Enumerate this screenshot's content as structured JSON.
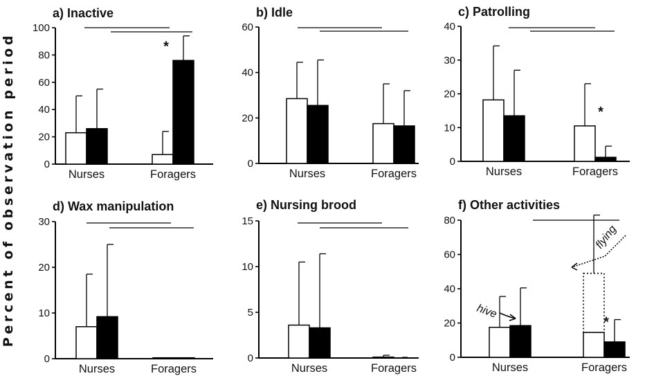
{
  "figure": {
    "ylabel": "Percent of observation period"
  },
  "chart_data": [
    {
      "type": "bar",
      "title": "a) Inactive",
      "categories": [
        "Nurses",
        "Foragers"
      ],
      "ylim": [
        0,
        100
      ],
      "yticks": [
        0,
        20,
        40,
        60,
        80,
        100
      ],
      "legend": "none",
      "grid": false,
      "series": [
        {
          "fill": "#ffffff",
          "values": [
            23,
            7
          ],
          "errors": [
            50,
            24
          ]
        },
        {
          "fill": "#000000",
          "values": [
            26,
            76
          ],
          "errors": [
            55,
            94
          ]
        }
      ],
      "asterisks": [
        {
          "category": 1,
          "series": 1,
          "text": "*"
        }
      ]
    },
    {
      "type": "bar",
      "title": "b) Idle",
      "categories": [
        "Nurses",
        "Foragers"
      ],
      "ylim": [
        0,
        60
      ],
      "yticks": [
        0,
        20,
        40,
        60
      ],
      "legend": "none",
      "grid": false,
      "series": [
        {
          "fill": "#ffffff",
          "values": [
            28.5,
            17.5
          ],
          "errors": [
            44.5,
            35
          ]
        },
        {
          "fill": "#000000",
          "values": [
            25.5,
            16.5
          ],
          "errors": [
            45.5,
            32
          ]
        }
      ],
      "asterisks": []
    },
    {
      "type": "bar",
      "title": "c) Patrolling",
      "categories": [
        "Nurses",
        "Foragers"
      ],
      "ylim": [
        0,
        40
      ],
      "yticks": [
        0,
        10,
        20,
        30,
        40
      ],
      "legend": "none",
      "grid": false,
      "series": [
        {
          "fill": "#ffffff",
          "values": [
            18.2,
            10.5
          ],
          "errors": [
            34.2,
            23
          ]
        },
        {
          "fill": "#000000",
          "values": [
            13.5,
            1.2
          ],
          "errors": [
            27,
            4.5
          ]
        }
      ],
      "asterisks": [
        {
          "category": 1,
          "series": 0,
          "text": "*"
        }
      ]
    },
    {
      "type": "bar",
      "title": "d) Wax manipulation",
      "categories": [
        "Nurses",
        "Foragers"
      ],
      "ylim": [
        0,
        30
      ],
      "yticks": [
        0,
        10,
        20,
        30
      ],
      "legend": "none",
      "grid": false,
      "series": [
        {
          "fill": "#ffffff",
          "values": [
            7,
            0.2
          ],
          "errors": [
            18.5,
            0.2
          ]
        },
        {
          "fill": "#000000",
          "values": [
            9.2,
            0.2
          ],
          "errors": [
            25,
            0.2
          ]
        }
      ],
      "asterisks": []
    },
    {
      "type": "bar",
      "title": "e) Nursing brood",
      "categories": [
        "Nurses",
        "Foragers"
      ],
      "ylim": [
        0,
        15
      ],
      "yticks": [
        0,
        5,
        10,
        15
      ],
      "legend": "none",
      "grid": false,
      "series": [
        {
          "fill": "#ffffff",
          "values": [
            3.6,
            0.1
          ],
          "errors": [
            10.5,
            0.3
          ]
        },
        {
          "fill": "#000000",
          "values": [
            3.3,
            0
          ],
          "errors": [
            11.4,
            0
          ]
        }
      ],
      "asterisks": []
    },
    {
      "type": "bar",
      "title": "f) Other activities",
      "categories": [
        "Nurses",
        "Foragers"
      ],
      "ylim": [
        0,
        80
      ],
      "yticks": [
        0,
        20,
        40,
        60,
        80
      ],
      "legend": "none",
      "grid": false,
      "series": [
        {
          "fill": "#ffffff",
          "values": [
            17.5,
            14.5
          ],
          "errors": [
            35.5,
            26
          ]
        },
        {
          "fill": "#000000",
          "values": [
            18.5,
            9
          ],
          "errors": [
            40.5,
            22
          ]
        }
      ],
      "stacked_dotted": {
        "category": 1,
        "series": 0,
        "value": 49,
        "error": 83
      },
      "annotations": [
        {
          "text": "hive"
        },
        {
          "text": "flying"
        }
      ],
      "asterisks": [
        {
          "category": 1,
          "series": 1,
          "text": "*"
        }
      ]
    }
  ]
}
